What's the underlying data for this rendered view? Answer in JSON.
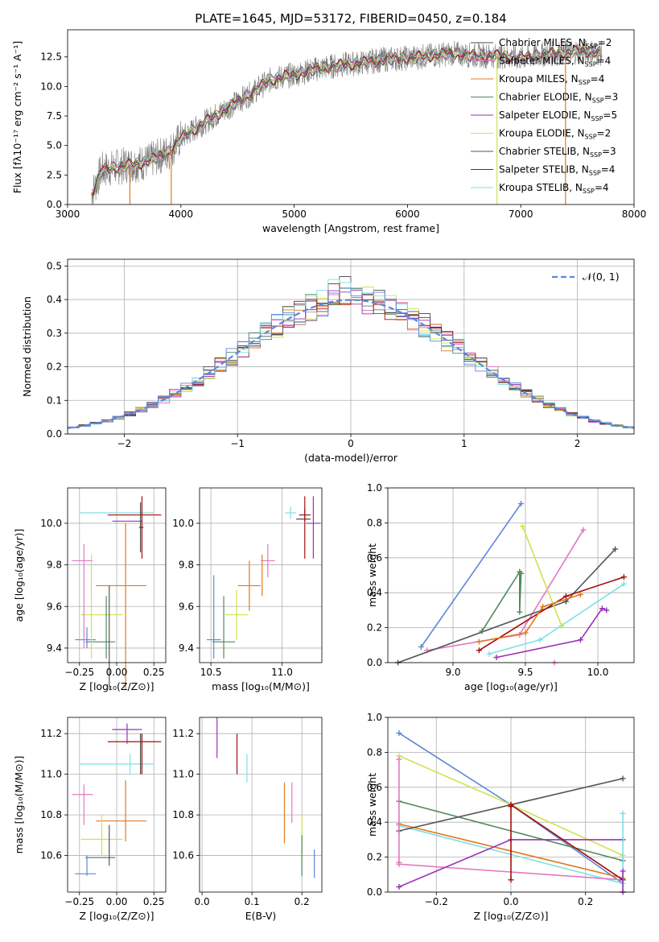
{
  "colors": {
    "Chabrier MILES": "#4a4a4a",
    "Salpeter MILES": "#e377c2",
    "Kroupa MILES": "#e07a1f",
    "Chabrier ELODIE": "#4f8a5a",
    "Salpeter ELODIE": "#9a32b5",
    "Kroupa ELODIE": "#cfe34e",
    "Chabrier STELIB": "#555555",
    "Salpeter STELIB": "#a40f0f",
    "Kroupa STELIB": "#7fdfe6",
    "blue": "#5f86d9"
  },
  "chart_data": [
    {
      "id": "spectrum",
      "type": "line",
      "title": "PLATE=1645, MJD=53172, FIBERID=0450, z=0.184",
      "xlabel": "wavelength [Angstrom, rest frame]",
      "ylabel": "Flux [fλ10⁻¹⁷ erg cm⁻² s⁻¹ A⁻¹]",
      "xlim": [
        3000,
        8000
      ],
      "ylim": [
        0,
        14.8
      ],
      "xticks": [
        "3000",
        "4000",
        "5000",
        "6000",
        "7000",
        "8000"
      ],
      "yticks": [
        "0.0",
        "2.5",
        "5.0",
        "7.5",
        "10.0",
        "12.5"
      ],
      "grid": false,
      "legend_position": "top-right",
      "data_description_x": [
        3210,
        3300,
        3500,
        3700,
        3900,
        4000,
        4200,
        4400,
        4600,
        4800,
        5000,
        5200,
        5400,
        5600,
        5800,
        6000,
        6200,
        6400,
        6600,
        6800,
        7000,
        7200,
        7400,
        7600,
        7700
      ],
      "data_description_y": [
        0.8,
        2.9,
        3.3,
        3.6,
        4.5,
        5.6,
        6.9,
        8.1,
        9.3,
        10.6,
        11.0,
        11.5,
        11.8,
        12.0,
        12.3,
        12.4,
        12.6,
        12.8,
        12.6,
        12.6,
        12.4,
        12.7,
        12.9,
        13.0,
        12.8
      ],
      "series": [
        {
          "name": "Chabrier MILES",
          "nssp": "2"
        },
        {
          "name": "Salpeter MILES",
          "nssp": "4"
        },
        {
          "name": "Kroupa MILES",
          "nssp": "4"
        },
        {
          "name": "Chabrier ELODIE",
          "nssp": "3"
        },
        {
          "name": "Salpeter ELODIE",
          "nssp": "5"
        },
        {
          "name": "Kroupa ELODIE",
          "nssp": "2"
        },
        {
          "name": "Chabrier STELIB",
          "nssp": "3"
        },
        {
          "name": "Salpeter STELIB",
          "nssp": "4"
        },
        {
          "name": "Kroupa STELIB",
          "nssp": "4"
        }
      ]
    },
    {
      "id": "residuals",
      "type": "histogram",
      "xlabel": "(data-model)/error",
      "ylabel": "Normed distribution",
      "xlim": [
        -2.5,
        2.5
      ],
      "ylim": [
        0,
        0.52
      ],
      "xticks": [
        "−2",
        "−1",
        "0",
        "1",
        "2"
      ],
      "yticks": [
        "0.0",
        "0.1",
        "0.2",
        "0.3",
        "0.4",
        "0.5"
      ],
      "grid": true,
      "legend_position": "top-right",
      "legend": "𝒩(0, 1)",
      "bin_width": 0.1
    },
    {
      "id": "age-vs-z",
      "type": "scatter",
      "xlabel": "Z [log₁₀(Z/Z⊙)]",
      "ylabel": "age  [log₁₀(age/yr)]",
      "xlim": [
        -0.33,
        0.33
      ],
      "ylim": [
        9.33,
        10.17
      ],
      "xticks": [
        "−0.25",
        "0.00",
        "0.25"
      ],
      "yticks": [
        "9.4",
        "9.6",
        "9.8",
        "10.0"
      ],
      "grid": true,
      "points": [
        {
          "s": "Kroupa STELIB",
          "x": 0.0,
          "xe": 0.25,
          "y": 10.05,
          "ye": 0.0
        },
        {
          "s": "Salpeter STELIB",
          "x": 0.12,
          "xe": 0.18,
          "y": 10.04,
          "ye": 0.0
        },
        {
          "s": "Salpeter ELODIE",
          "x": 0.07,
          "xe": 0.1,
          "y": 10.01,
          "ye": 0.0
        },
        {
          "s": "Chabrier MILES",
          "x": 0.16,
          "xe": 0.01,
          "y": 9.98,
          "ye": 0.12
        },
        {
          "s": "Salpeter STELIB",
          "x": 0.17,
          "xe": 0.01,
          "y": 9.98,
          "ye": 0.15
        },
        {
          "s": "Salpeter MILES",
          "x": -0.23,
          "xe": 0.07,
          "y": 9.82,
          "ye": 0.0
        },
        {
          "s": "Kroupa MILES",
          "x": 0.03,
          "xe": 0.17,
          "y": 9.7,
          "ye": 0.0
        },
        {
          "s": "Kroupa ELODIE",
          "x": -0.1,
          "xe": 0.14,
          "y": 9.56,
          "ye": 0.0
        },
        {
          "s": "blue",
          "x": -0.21,
          "xe": 0.07,
          "y": 9.44,
          "ye": 0.0
        },
        {
          "s": "Chabrier ELODIE",
          "x": -0.11,
          "xe": 0.1,
          "y": 9.43,
          "ye": 0.0
        },
        {
          "s": "Salpeter MILES",
          "x": -0.22,
          "xe": 0.0,
          "y": 9.65,
          "ye": 0.25
        },
        {
          "s": "Kroupa MILES",
          "x": 0.06,
          "xe": 0.0,
          "y": 9.6,
          "ye": 0.4
        },
        {
          "s": "Kroupa ELODIE",
          "x": -0.17,
          "xe": 0.0,
          "y": 9.6,
          "ye": 0.25
        },
        {
          "s": "blue",
          "x": -0.2,
          "xe": 0.0,
          "y": 9.45,
          "ye": 0.05
        },
        {
          "s": "Chabrier STELIB",
          "x": -0.05,
          "xe": 0.0,
          "y": 9.45,
          "ye": 0.25
        },
        {
          "s": "Chabrier ELODIE",
          "x": -0.07,
          "xe": 0.0,
          "y": 9.5,
          "ye": 0.15
        }
      ]
    },
    {
      "id": "age-vs-mass",
      "type": "scatter",
      "xlabel": "mass [log₁₀(M/M⊙)]",
      "ylabel": "",
      "xlim": [
        10.42,
        11.28
      ],
      "ylim": [
        9.33,
        10.17
      ],
      "xticks": [
        "10.5",
        "11.0"
      ],
      "yticks": [
        "9.4",
        "9.6",
        "9.8",
        "10.0"
      ],
      "grid": true,
      "points": [
        {
          "s": "Kroupa STELIB",
          "x": 11.06,
          "xe": 0.04,
          "y": 10.05,
          "ye": 0.03
        },
        {
          "s": "Salpeter STELIB",
          "x": 11.16,
          "xe": 0.04,
          "y": 10.04,
          "ye": 0.03
        },
        {
          "s": "Salpeter ELODIE",
          "x": 11.22,
          "xe": 0.05,
          "y": 10.0,
          "ye": 0.0
        },
        {
          "s": "Chabrier MILES",
          "x": 11.15,
          "xe": 0.05,
          "y": 10.02,
          "ye": 0.0
        },
        {
          "s": "Salpeter STELIB",
          "x": 11.16,
          "xe": 0.0,
          "y": 9.98,
          "ye": 0.15
        },
        {
          "s": "Salpeter ELODIE",
          "x": 11.22,
          "xe": 0.0,
          "y": 9.98,
          "ye": 0.15
        },
        {
          "s": "Salpeter MILES",
          "x": 10.9,
          "xe": 0.05,
          "y": 9.82,
          "ye": 0.08
        },
        {
          "s": "Kroupa MILES",
          "x": 10.77,
          "xe": 0.08,
          "y": 9.7,
          "ye": 0.12
        },
        {
          "s": "Kroupa ELODIE",
          "x": 10.68,
          "xe": 0.08,
          "y": 9.56,
          "ye": 0.12
        },
        {
          "s": "blue",
          "x": 10.52,
          "xe": 0.05,
          "y": 9.44,
          "ye": 0.0
        },
        {
          "s": "Chabrier ELODIE",
          "x": 10.59,
          "xe": 0.08,
          "y": 9.43,
          "ye": 0.0
        },
        {
          "s": "blue",
          "x": 10.52,
          "xe": 0.0,
          "y": 9.55,
          "ye": 0.2
        },
        {
          "s": "Chabrier ELODIE",
          "x": 10.59,
          "xe": 0.0,
          "y": 9.5,
          "ye": 0.15
        },
        {
          "s": "Kroupa MILES",
          "x": 10.86,
          "xe": 0.0,
          "y": 9.75,
          "ye": 0.1
        }
      ]
    },
    {
      "id": "weight-vs-age",
      "type": "line",
      "xlabel": "age  [log₁₀(age/yr)]",
      "ylabel": "mass weight",
      "xlim": [
        8.55,
        10.25
      ],
      "ylim": [
        0,
        1.0
      ],
      "xticks": [
        "9.0",
        "9.5",
        "10.0"
      ],
      "yticks": [
        "0.0",
        "0.2",
        "0.4",
        "0.6",
        "0.8",
        "1.0"
      ],
      "grid": true,
      "series": [
        {
          "s": "blue",
          "x": [
            8.78,
            9.47
          ],
          "y": [
            0.09,
            0.91
          ]
        },
        {
          "s": "Salpeter MILES",
          "x": [
            8.82,
            9.46,
            9.9
          ],
          "y": [
            0.07,
            0.16,
            0.76
          ]
        },
        {
          "s": "Chabrier STELIB",
          "x": [
            8.62,
            9.78,
            10.12
          ],
          "y": [
            0.0,
            0.35,
            0.65
          ]
        },
        {
          "s": "Salpeter STELIB",
          "x": [
            9.18,
            9.78,
            10.18
          ],
          "y": [
            0.07,
            0.38,
            0.49
          ]
        },
        {
          "s": "Kroupa STELIB",
          "x": [
            9.25,
            9.6,
            10.18
          ],
          "y": [
            0.05,
            0.13,
            0.45
          ]
        },
        {
          "s": "Chabrier ELODIE",
          "x": [
            9.2,
            9.46,
            9.46,
            9.47
          ],
          "y": [
            0.18,
            0.52,
            0.29,
            0.51
          ]
        },
        {
          "s": "Kroupa ELODIE",
          "x": [
            9.48,
            9.75
          ],
          "y": [
            0.78,
            0.21
          ]
        },
        {
          "s": "Kroupa MILES",
          "x": [
            9.18,
            9.5,
            9.62,
            9.88
          ],
          "y": [
            0.12,
            0.17,
            0.32,
            0.39
          ]
        },
        {
          "s": "Salpeter ELODIE",
          "x": [
            9.3,
            9.88,
            10.03,
            10.06
          ],
          "y": [
            0.03,
            0.13,
            0.31,
            0.3
          ]
        },
        {
          "s": "Salpeter MILES",
          "x": [
            9.7
          ],
          "y": [
            0.0
          ]
        }
      ]
    },
    {
      "id": "mass-vs-z",
      "type": "scatter",
      "xlabel": "Z [log₁₀(Z/Z⊙)]",
      "ylabel": "mass [log₁₀(M/M⊙)]",
      "xlim": [
        -0.33,
        0.33
      ],
      "ylim": [
        10.42,
        11.28
      ],
      "xticks": [
        "−0.25",
        "0.00",
        "0.25"
      ],
      "yticks": [
        "10.6",
        "10.8",
        "11.0",
        "11.2"
      ],
      "grid": true,
      "points": [
        {
          "s": "Salpeter ELODIE",
          "x": 0.07,
          "xe": 0.1,
          "y": 11.22,
          "ye": 0.0
        },
        {
          "s": "Salpeter STELIB",
          "x": 0.12,
          "xe": 0.18,
          "y": 11.16,
          "ye": 0.0
        },
        {
          "s": "Kroupa STELIB",
          "x": 0.0,
          "xe": 0.25,
          "y": 11.05,
          "ye": 0.0
        },
        {
          "s": "Salpeter ELODIE",
          "x": 0.07,
          "xe": 0.0,
          "y": 11.2,
          "ye": 0.05
        },
        {
          "s": "Chabrier MILES",
          "x": 0.16,
          "xe": 0.0,
          "y": 11.1,
          "ye": 0.1
        },
        {
          "s": "Salpeter STELIB",
          "x": 0.17,
          "xe": 0.0,
          "y": 11.1,
          "ye": 0.1
        },
        {
          "s": "Kroupa STELIB",
          "x": 0.09,
          "xe": 0.0,
          "y": 11.05,
          "ye": 0.05
        },
        {
          "s": "Salpeter MILES",
          "x": -0.23,
          "xe": 0.07,
          "y": 10.9,
          "ye": 0.0
        },
        {
          "s": "Salpeter MILES",
          "x": -0.22,
          "xe": 0.0,
          "y": 10.85,
          "ye": 0.1
        },
        {
          "s": "Kroupa MILES",
          "x": 0.03,
          "xe": 0.17,
          "y": 10.77,
          "ye": 0.0
        },
        {
          "s": "Kroupa MILES",
          "x": 0.06,
          "xe": 0.0,
          "y": 10.82,
          "ye": 0.15
        },
        {
          "s": "Kroupa ELODIE",
          "x": -0.1,
          "xe": 0.14,
          "y": 10.68,
          "ye": 0.0
        },
        {
          "s": "Kroupa ELODIE",
          "x": -0.1,
          "xe": 0.0,
          "y": 10.7,
          "ye": 0.1
        },
        {
          "s": "Chabrier ELODIE",
          "x": -0.11,
          "xe": 0.1,
          "y": 10.59,
          "ye": 0.0
        },
        {
          "s": "Chabrier STELIB",
          "x": -0.05,
          "xe": 0.0,
          "y": 10.65,
          "ye": 0.1
        },
        {
          "s": "blue",
          "x": -0.21,
          "xe": 0.07,
          "y": 10.51,
          "ye": 0.0
        },
        {
          "s": "blue",
          "x": -0.2,
          "xe": 0.0,
          "y": 10.55,
          "ye": 0.05
        }
      ]
    },
    {
      "id": "mass-vs-ebv",
      "type": "scatter",
      "xlabel": "E(B-V)",
      "ylabel": "",
      "xlim": [
        -0.005,
        0.24
      ],
      "ylim": [
        10.42,
        11.28
      ],
      "xticks": [
        "0.0",
        "0.1",
        "0.2"
      ],
      "yticks": [
        "10.6",
        "10.8",
        "11.0",
        "11.2"
      ],
      "grid": true,
      "points": [
        {
          "s": "Salpeter ELODIE",
          "x": 0.03,
          "xe": 0.0,
          "y": 11.18,
          "ye": 0.1
        },
        {
          "s": "Salpeter STELIB",
          "x": 0.07,
          "xe": 0.0,
          "y": 11.1,
          "ye": 0.1
        },
        {
          "s": "Kroupa STELIB",
          "x": 0.09,
          "xe": 0.0,
          "y": 11.03,
          "ye": 0.07
        },
        {
          "s": "Salpeter MILES",
          "x": 0.18,
          "xe": 0.0,
          "y": 10.86,
          "ye": 0.1
        },
        {
          "s": "Kroupa MILES",
          "x": 0.165,
          "xe": 0.0,
          "y": 10.81,
          "ye": 0.15
        },
        {
          "s": "Kroupa ELODIE",
          "x": 0.2,
          "xe": 0.0,
          "y": 10.7,
          "ye": 0.1
        },
        {
          "s": "Chabrier ELODIE",
          "x": 0.2,
          "xe": 0.0,
          "y": 10.6,
          "ye": 0.1
        },
        {
          "s": "blue",
          "x": 0.225,
          "xe": 0.0,
          "y": 10.56,
          "ye": 0.07
        }
      ]
    },
    {
      "id": "weight-vs-z",
      "type": "line",
      "xlabel": "Z [log₁₀(Z/Z⊙)]",
      "ylabel": "mass weight",
      "xlim": [
        -0.33,
        0.33
      ],
      "ylim": [
        0,
        1.0
      ],
      "xticks": [
        "−0.2",
        "0.0",
        "0.2"
      ],
      "yticks": [
        "0.0",
        "0.2",
        "0.4",
        "0.6",
        "0.8",
        "1.0"
      ],
      "grid": true,
      "series": [
        {
          "s": "blue",
          "x": [
            -0.3,
            0.0,
            0.3
          ],
          "y": [
            0.91,
            0.5,
            0.05
          ]
        },
        {
          "s": "Kroupa ELODIE",
          "x": [
            -0.3,
            0.0,
            0.3
          ],
          "y": [
            0.78,
            0.5,
            0.21
          ]
        },
        {
          "s": "Chabrier ELODIE",
          "x": [
            -0.3,
            0.3
          ],
          "y": [
            0.52,
            0.18
          ]
        },
        {
          "s": "Kroupa MILES",
          "x": [
            -0.3,
            0.3
          ],
          "y": [
            0.39,
            0.08
          ]
        },
        {
          "s": "Kroupa STELIB",
          "x": [
            -0.3,
            0.3
          ],
          "y": [
            0.38,
            0.05
          ]
        },
        {
          "s": "Salpeter MILES",
          "x": [
            -0.3,
            0.3
          ],
          "y": [
            0.16,
            0.07
          ]
        },
        {
          "s": "Chabrier STELIB",
          "x": [
            -0.3,
            0.3
          ],
          "y": [
            0.35,
            0.65
          ]
        },
        {
          "s": "Salpeter ELODIE",
          "x": [
            -0.3,
            0.0,
            0.3
          ],
          "y": [
            0.03,
            0.3,
            0.3
          ]
        },
        {
          "s": "Salpeter STELIB",
          "x": [
            0.0,
            0.3
          ],
          "y": [
            0.5,
            0.07
          ]
        },
        {
          "s": "Salpeter STELIB",
          "x": [
            0.0,
            0.0
          ],
          "y": [
            0.07,
            0.49
          ]
        },
        {
          "s": "Salpeter MILES",
          "x": [
            -0.3,
            -0.3
          ],
          "y": [
            0.17,
            0.76
          ]
        },
        {
          "s": "Kroupa STELIB",
          "x": [
            0.3,
            0.3
          ],
          "y": [
            0.0,
            0.45
          ]
        },
        {
          "s": "Salpeter ELODIE",
          "x": [
            0.3,
            0.3
          ],
          "y": [
            0.0,
            0.12
          ]
        }
      ]
    }
  ]
}
